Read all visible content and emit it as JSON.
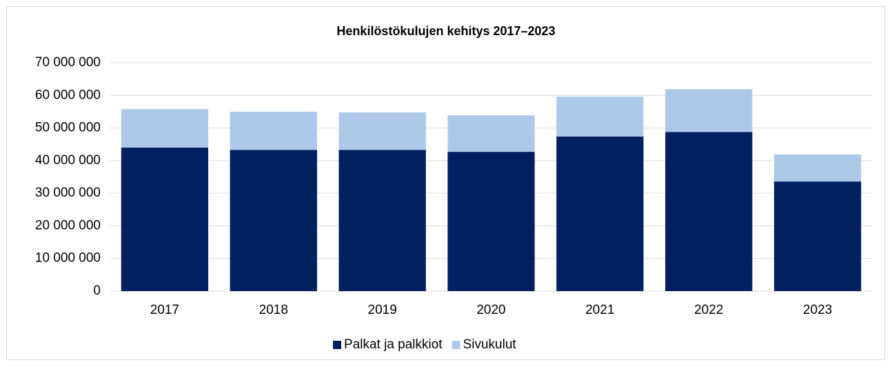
{
  "chart_data": {
    "type": "stacked_bar",
    "title": "Henkilöstökulujen kehitys 2017–2023",
    "categories": [
      "2017",
      "2018",
      "2019",
      "2020",
      "2021",
      "2022",
      "2023"
    ],
    "series": [
      {
        "name": "Palkat ja palkkiot",
        "color": "#002060",
        "values": [
          44000000,
          43300000,
          43300000,
          42700000,
          47400000,
          48800000,
          33600000
        ]
      },
      {
        "name": "Sivukulut",
        "color": "#adc8e8",
        "values": [
          11800000,
          11700000,
          11500000,
          11200000,
          12200000,
          13100000,
          8300000
        ]
      }
    ],
    "ylim": [
      0,
      70000000
    ],
    "yticks": [
      0,
      {
        "value": 10000000,
        "label": "10 000 000"
      },
      {
        "value": 20000000,
        "label": "20 000 000"
      },
      {
        "value": 30000000,
        "label": "30 000 000"
      },
      {
        "value": 40000000,
        "label": "40 000 000"
      },
      {
        "value": 50000000,
        "label": "50 000 000"
      },
      {
        "value": 60000000,
        "label": "60 000 000"
      },
      {
        "value": 70000000,
        "label": "70 000 000"
      }
    ],
    "grid": true,
    "legend": "bottom"
  }
}
